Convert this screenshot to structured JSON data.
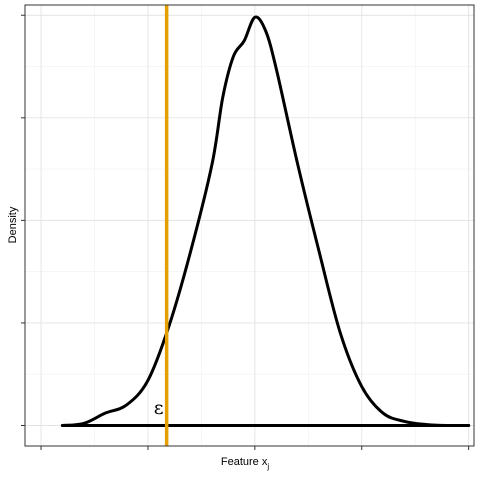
{
  "chart_data": {
    "type": "line",
    "title": "",
    "xlabel": "Feature x",
    "xlabel_subscript": "j",
    "ylabel": "Density",
    "xlim": [
      -4.3,
      4.1
    ],
    "ylim": [
      -0.02,
      0.41
    ],
    "x_ticks": [
      -4,
      -2,
      0,
      2,
      4
    ],
    "y_ticks": [
      0,
      0.1,
      0.2,
      0.3,
      0.4
    ],
    "tick_labels_visible": false,
    "grid": true,
    "legend": "none",
    "series": [
      {
        "x": [
          -3.6,
          -3.2,
          -2.8,
          -2.4,
          -2.0,
          -1.6,
          -1.2,
          -0.8,
          -0.6,
          -0.4,
          -0.2,
          0.0,
          0.2,
          0.4,
          0.8,
          1.2,
          1.6,
          2.0,
          2.4,
          2.8,
          3.2,
          3.6,
          4.0
        ],
        "y": [
          0.0,
          0.002,
          0.012,
          0.02,
          0.044,
          0.098,
          0.17,
          0.255,
          0.32,
          0.36,
          0.375,
          0.398,
          0.385,
          0.348,
          0.255,
          0.17,
          0.09,
          0.038,
          0.012,
          0.004,
          0.001,
          0.0,
          0.0
        ],
        "color": "#000000"
      }
    ],
    "baseline": {
      "x_start": -3.6,
      "x_end": 4.0,
      "y": 0,
      "color": "#000000"
    },
    "vline": {
      "x": -1.65,
      "color": "#E69F00"
    },
    "annotation": {
      "text": "ε",
      "x": -1.8,
      "y": 0.011
    }
  }
}
